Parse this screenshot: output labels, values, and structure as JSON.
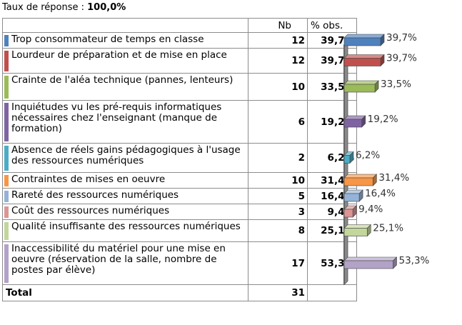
{
  "response_rate": {
    "label": "Taux de réponse : ",
    "value": "100,0%"
  },
  "headers": {
    "label": "",
    "nb": "Nb",
    "pct": "% obs."
  },
  "rows": [
    {
      "label": "Trop consommateur de temps en classe",
      "nb": "12",
      "pct": "39,7%",
      "color": "#4f81bd"
    },
    {
      "label": "Lourdeur de préparation et de mise en place",
      "nb": "12",
      "pct": "39,7%",
      "color": "#c0504d"
    },
    {
      "label": "Crainte de l'aléa technique (pannes, lenteurs)",
      "nb": "10",
      "pct": "33,5%",
      "color": "#9bbb59"
    },
    {
      "label": "Inquiétudes vu les pré-requis informatiques nécessaires chez l'enseignant (manque de formation)",
      "nb": "6",
      "pct": "19,2%",
      "color": "#8064a2"
    },
    {
      "label": "Absence de réels gains pédagogiques à l'usage des  ressources numériques",
      "nb": "2",
      "pct": "6,2%",
      "color": "#4bacc6"
    },
    {
      "label": "Contraintes de mises en oeuvre",
      "nb": "10",
      "pct": "31,4%",
      "color": "#f79646"
    },
    {
      "label": "Rareté des ressources numériques",
      "nb": "5",
      "pct": "16,4%",
      "color": "#95b3d7"
    },
    {
      "label": "Coût des ressources numériques",
      "nb": "3",
      "pct": "9,4%",
      "color": "#d99694"
    },
    {
      "label": "Qualité insuffisante des ressources numériques",
      "nb": "8",
      "pct": "25,1%",
      "color": "#c3d69b"
    },
    {
      "label": "Inaccessibilité du matériel pour une mise en oeuvre (réservation de la salle, nombre de postes par élève)",
      "nb": "17",
      "pct": "53,3%",
      "color": "#b2a2c7"
    }
  ],
  "total": {
    "label": "Total",
    "nb": "31"
  },
  "chart_data": {
    "type": "bar",
    "orientation": "horizontal",
    "categories": [
      "Trop consommateur de temps en classe",
      "Lourdeur de préparation et de mise en place",
      "Crainte de l'aléa technique (pannes, lenteurs)",
      "Inquiétudes vu les pré-requis informatiques nécessaires chez l'enseignant (manque de formation)",
      "Absence de réels gains pédagogiques à l'usage des  ressources numériques",
      "Contraintes de mises en oeuvre",
      "Rareté des ressources numériques",
      "Coût des ressources numériques",
      "Qualité insuffisante des ressources numériques",
      "Inaccessibilité du matériel pour une mise en oeuvre (réservation de la salle, nombre de postes par élève)"
    ],
    "values": [
      39.7,
      39.7,
      33.5,
      19.2,
      6.2,
      31.4,
      16.4,
      9.4,
      25.1,
      53.3
    ],
    "value_labels": [
      "39,7%",
      "39,7%",
      "33,5%",
      "19,2%",
      "6,2%",
      "31,4%",
      "16,4%",
      "9,4%",
      "25,1%",
      "53,3%"
    ],
    "colors": [
      "#4f81bd",
      "#c0504d",
      "#9bbb59",
      "#8064a2",
      "#4bacc6",
      "#f79646",
      "#95b3d7",
      "#d99694",
      "#c3d69b",
      "#b2a2c7"
    ],
    "title": "",
    "grid": false,
    "legend": "none"
  }
}
